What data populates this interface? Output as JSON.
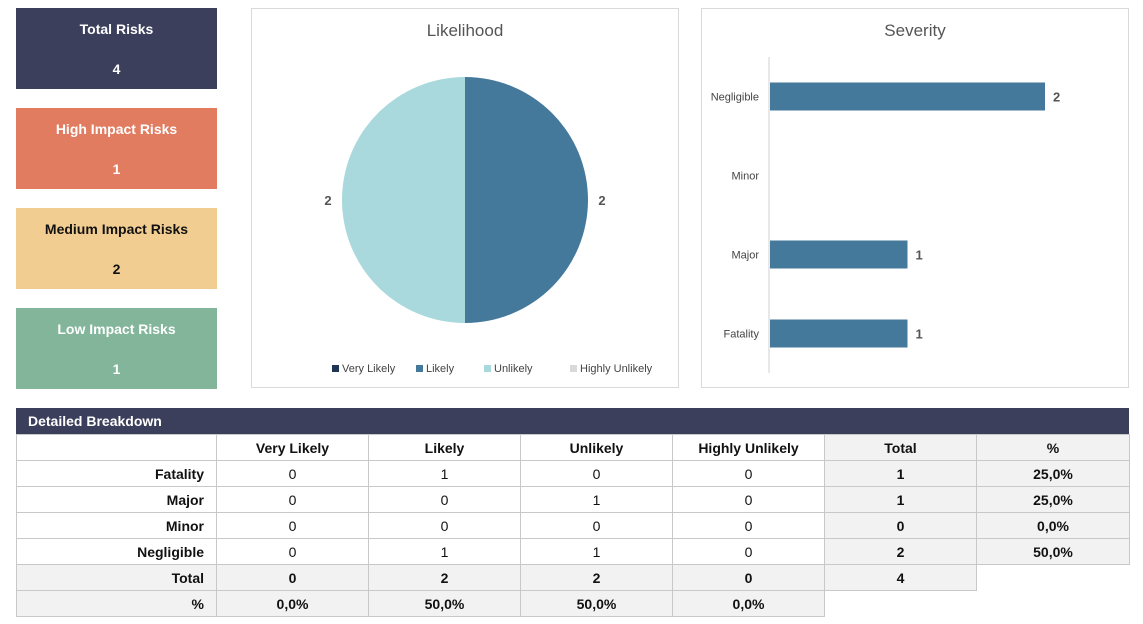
{
  "kpis": {
    "total": {
      "label": "Total Risks",
      "value": "4"
    },
    "high": {
      "label": "High Impact Risks",
      "value": "1"
    },
    "medium": {
      "label": "Medium Impact Risks",
      "value": "2"
    },
    "low": {
      "label": "Low Impact Risks",
      "value": "1"
    }
  },
  "chart_data": [
    {
      "type": "pie",
      "title": "Likelihood",
      "categories": [
        "Very Likely",
        "Likely",
        "Unlikely",
        "Highly Unlikely"
      ],
      "values": [
        0,
        2,
        2,
        0
      ],
      "data_labels": [
        "",
        "2",
        "2",
        ""
      ],
      "legend": "bottom",
      "colors": [
        "#1f3552",
        "#44799c",
        "#a9d9dc",
        "#d9d9d9"
      ]
    },
    {
      "type": "bar",
      "orientation": "horizontal",
      "title": "Severity",
      "categories": [
        "Negligible",
        "Minor",
        "Major",
        "Fatality"
      ],
      "values": [
        2,
        0,
        1,
        1
      ],
      "data_labels": [
        "2",
        "",
        "1",
        "1"
      ],
      "xlim": [
        0,
        2
      ],
      "grid": false,
      "color": "#44799c"
    }
  ],
  "breakdown": {
    "title": "Detailed Breakdown",
    "columns": [
      "Very Likely",
      "Likely",
      "Unlikely",
      "Highly Unlikely",
      "Total",
      "%"
    ],
    "rows": [
      {
        "label": "Fatality",
        "cells": [
          "0",
          "1",
          "0",
          "0"
        ],
        "total": "1",
        "pct": "25,0%"
      },
      {
        "label": "Major",
        "cells": [
          "0",
          "0",
          "1",
          "0"
        ],
        "total": "1",
        "pct": "25,0%"
      },
      {
        "label": "Minor",
        "cells": [
          "0",
          "0",
          "0",
          "0"
        ],
        "total": "0",
        "pct": "0,0%"
      },
      {
        "label": "Negligible",
        "cells": [
          "0",
          "1",
          "1",
          "0"
        ],
        "total": "2",
        "pct": "50,0%"
      }
    ],
    "total_row": {
      "label": "Total",
      "cells": [
        "0",
        "2",
        "2",
        "0"
      ],
      "total": "4"
    },
    "pct_row": {
      "label": "%",
      "cells": [
        "0,0%",
        "50,0%",
        "50,0%",
        "0,0%"
      ]
    }
  }
}
